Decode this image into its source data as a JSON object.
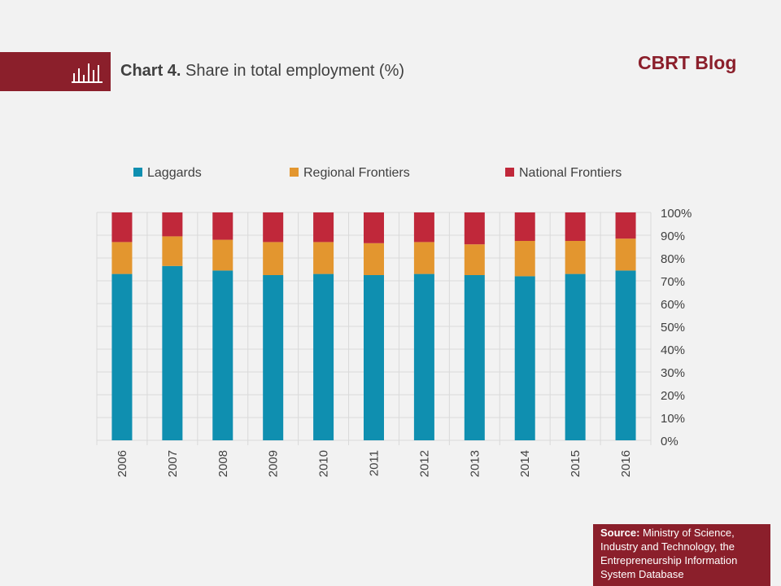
{
  "header": {
    "chart_label": "Chart 4.",
    "chart_title": "Share in total employment (%)",
    "brand": "CBRT Blog"
  },
  "source": {
    "label": "Source:",
    "text": "Ministry of Science, Industry and Technology, the Entrepreneurship Information System Database"
  },
  "colors": {
    "brand": "#8b1f2b",
    "laggards": "#0f8fb0",
    "regional_frontiers": "#e3962f",
    "national_frontiers": "#c0283a"
  },
  "chart_data": {
    "type": "bar",
    "stacked": true,
    "percent_stacked": true,
    "categories": [
      "2006",
      "2007",
      "2008",
      "2009",
      "2010",
      "2011",
      "2012",
      "2013",
      "2014",
      "2015",
      "2016"
    ],
    "series": [
      {
        "name": "Laggards",
        "color": "#0f8fb0",
        "values": [
          73,
          76.5,
          74.5,
          72.5,
          73,
          72.5,
          73,
          72.5,
          72,
          73,
          74.5
        ]
      },
      {
        "name": "Regional Frontiers",
        "color": "#e3962f",
        "values": [
          14,
          13,
          13.5,
          14.5,
          14,
          14,
          14,
          13.5,
          15.5,
          14.5,
          14
        ]
      },
      {
        "name": "National Frontiers",
        "color": "#c0283a",
        "values": [
          13,
          10.5,
          12,
          13,
          13,
          13.5,
          13,
          14,
          12.5,
          12.5,
          11.5
        ]
      }
    ],
    "ylim": [
      0,
      100
    ],
    "yticks": [
      "0%",
      "10%",
      "20%",
      "30%",
      "40%",
      "50%",
      "60%",
      "70%",
      "80%",
      "90%",
      "100%"
    ],
    "y_axis_position": "right",
    "grid": true,
    "legend": "top"
  }
}
